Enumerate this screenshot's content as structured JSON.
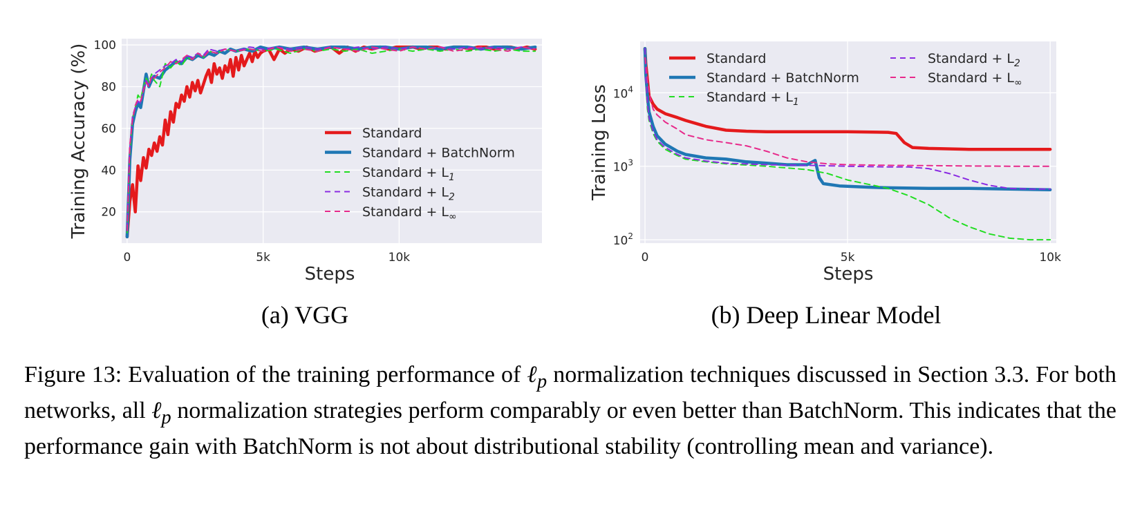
{
  "charts": [
    {
      "id": "a",
      "subcaption": "(a) VGG",
      "xlabel": "Steps",
      "ylabel": "Training Accuracy (%)",
      "xticks": [
        {
          "v": 0,
          "label": "0"
        },
        {
          "v": 5000,
          "label": "5k"
        },
        {
          "v": 10000,
          "label": "10k"
        }
      ],
      "yticks": [
        {
          "v": 20,
          "label": "20"
        },
        {
          "v": 40,
          "label": "40"
        },
        {
          "v": 60,
          "label": "60"
        },
        {
          "v": 80,
          "label": "80"
        },
        {
          "v": 100,
          "label": "100"
        }
      ]
    },
    {
      "id": "b",
      "subcaption": "(b) Deep Linear Model",
      "xlabel": "Steps",
      "ylabel": "Training Loss",
      "xticks": [
        {
          "v": 0,
          "label": "0"
        },
        {
          "v": 5000,
          "label": "5k"
        },
        {
          "v": 10000,
          "label": "10k"
        }
      ],
      "yticks": [
        {
          "v": 100,
          "base": "10",
          "exp": "2"
        },
        {
          "v": 1000,
          "base": "10",
          "exp": "3"
        },
        {
          "v": 10000,
          "base": "10",
          "exp": "4"
        }
      ]
    }
  ],
  "legend": [
    {
      "key": "std",
      "label": "Standard",
      "sub": ""
    },
    {
      "key": "bn",
      "label": "Standard + BatchNorm",
      "sub": ""
    },
    {
      "key": "l1",
      "label": "Standard + L",
      "sub": "1"
    },
    {
      "key": "l2",
      "label": "Standard + L",
      "sub": "2"
    },
    {
      "key": "linf",
      "label": "Standard + L",
      "sub": "∞"
    }
  ],
  "styles": {
    "std": {
      "color": "#e41a1c",
      "width": 4.5,
      "dash": ""
    },
    "bn": {
      "color": "#1f77b4",
      "width": 4.5,
      "dash": ""
    },
    "l1": {
      "color": "#22dd22",
      "width": 2,
      "dash": "8,6"
    },
    "l2": {
      "color": "#8a2be2",
      "width": 2,
      "dash": "8,6"
    },
    "linf": {
      "color": "#e7298a",
      "width": 2,
      "dash": "8,6"
    }
  },
  "colors": {
    "plot_bg": "#eaeaf2",
    "grid": "#ffffff"
  },
  "chart_data": [
    {
      "type": "line",
      "title": "(a) VGG",
      "xlabel": "Steps",
      "ylabel": "Training Accuracy (%)",
      "xlim": [
        0,
        15000
      ],
      "ylim": [
        5,
        103
      ],
      "yscale": "linear",
      "series": [
        {
          "key": "std",
          "name": "Standard",
          "x": [
            0,
            100,
            200,
            300,
            400,
            500,
            600,
            700,
            800,
            900,
            1000,
            1100,
            1200,
            1300,
            1400,
            1500,
            1600,
            1700,
            1800,
            1900,
            2000,
            2100,
            2200,
            2300,
            2400,
            2500,
            2600,
            2700,
            2800,
            2900,
            3000,
            3100,
            3200,
            3300,
            3400,
            3500,
            3600,
            3700,
            3800,
            3900,
            4000,
            4100,
            4200,
            4300,
            4400,
            4500,
            4600,
            4700,
            4800,
            4900,
            5000,
            5200,
            5400,
            5600,
            5800,
            6000,
            6300,
            6600,
            6900,
            7200,
            7500,
            7800,
            8100,
            8400,
            8700,
            9000,
            9300,
            9600,
            9900,
            10200,
            10500,
            10800,
            11100,
            11400,
            11700,
            12000,
            12300,
            12600,
            12900,
            13200,
            13500,
            13800,
            14100,
            14400,
            14700,
            15000
          ],
          "y": [
            8,
            25,
            33,
            20,
            42,
            35,
            46,
            41,
            50,
            47,
            53,
            49,
            56,
            52,
            64,
            57,
            68,
            63,
            72,
            70,
            76,
            73,
            80,
            75,
            82,
            78,
            83,
            77,
            81,
            85,
            88,
            82,
            91,
            86,
            89,
            84,
            90,
            87,
            93,
            85,
            94,
            88,
            95,
            90,
            93,
            96,
            92,
            97,
            94,
            96,
            97,
            98,
            93,
            98,
            96,
            98,
            97,
            99,
            97,
            98,
            99,
            96,
            99,
            97,
            99,
            98,
            99,
            98,
            99,
            99,
            99,
            98,
            99,
            99,
            98,
            99,
            99,
            98,
            99,
            99,
            98,
            99,
            99,
            98,
            99,
            98
          ]
        },
        {
          "key": "bn",
          "name": "Standard + BatchNorm",
          "x": [
            0,
            100,
            200,
            300,
            400,
            500,
            600,
            700,
            800,
            900,
            1000,
            1200,
            1400,
            1600,
            1800,
            2000,
            2200,
            2400,
            2600,
            2800,
            3000,
            3200,
            3400,
            3600,
            3800,
            4000,
            4300,
            4600,
            4900,
            5200,
            5600,
            6000,
            6500,
            7000,
            7500,
            8000,
            8500,
            9000,
            9500,
            10000,
            10500,
            11000,
            11500,
            12000,
            12500,
            13000,
            13500,
            14000,
            14500,
            15000
          ],
          "y": [
            8,
            45,
            62,
            68,
            72,
            70,
            78,
            86,
            80,
            83,
            85,
            84,
            88,
            90,
            92,
            91,
            94,
            93,
            95,
            94,
            96,
            95,
            97,
            96,
            98,
            97,
            98,
            97,
            99,
            98,
            99,
            98,
            99,
            98,
            99,
            99,
            98,
            99,
            99,
            98,
            99,
            99,
            98,
            99,
            99,
            98,
            99,
            99,
            98,
            99
          ]
        },
        {
          "key": "l1",
          "name": "Standard + L1",
          "x": [
            0,
            100,
            200,
            300,
            400,
            500,
            600,
            700,
            800,
            900,
            1000,
            1200,
            1400,
            1600,
            1800,
            2000,
            2200,
            2400,
            2600,
            2800,
            3000,
            3300,
            3600,
            4000,
            4500,
            5000,
            5500,
            6000,
            6500,
            7000,
            7500,
            8000,
            8500,
            9000,
            9500,
            10000,
            10500,
            11000,
            11500,
            12000,
            12500,
            13000,
            13500,
            14000,
            14500,
            15000
          ],
          "y": [
            10,
            48,
            65,
            70,
            76,
            74,
            80,
            84,
            82,
            86,
            83,
            80,
            91,
            89,
            92,
            90,
            94,
            93,
            96,
            94,
            97,
            96,
            98,
            97,
            98,
            97,
            98,
            96,
            98,
            97,
            98,
            97,
            98,
            96,
            97,
            98,
            97,
            98,
            97,
            98,
            97,
            98,
            97,
            98,
            97,
            97
          ]
        },
        {
          "key": "l2",
          "name": "Standard + L2",
          "x": [
            0,
            100,
            200,
            300,
            400,
            500,
            600,
            700,
            800,
            900,
            1000,
            1200,
            1400,
            1600,
            1800,
            2000,
            2200,
            2400,
            2600,
            2800,
            3000,
            3300,
            3600,
            4000,
            4500,
            5000,
            5500,
            6000,
            6500,
            7000,
            7500,
            8000,
            8500,
            9000,
            9500,
            10000,
            10500,
            11000,
            11500,
            12000,
            12500,
            13000,
            13500,
            14000,
            14500,
            15000
          ],
          "y": [
            12,
            50,
            66,
            70,
            73,
            72,
            79,
            83,
            81,
            84,
            86,
            88,
            90,
            91,
            93,
            92,
            95,
            94,
            96,
            95,
            98,
            97,
            98,
            97,
            99,
            98,
            99,
            98,
            99,
            98,
            99,
            98,
            99,
            98,
            99,
            98,
            99,
            98,
            99,
            98,
            99,
            98,
            99,
            98,
            99,
            98
          ]
        },
        {
          "key": "linf",
          "name": "Standard + L∞",
          "x": [
            0,
            100,
            200,
            300,
            400,
            500,
            600,
            700,
            800,
            900,
            1000,
            1200,
            1400,
            1600,
            1800,
            2000,
            2200,
            2400,
            2600,
            2800,
            3000,
            3300,
            3600,
            4000,
            4500,
            5000,
            5500,
            6000,
            6500,
            7000,
            7500,
            8000,
            8500,
            9000,
            9500,
            10000,
            10500,
            11000,
            11500,
            12000,
            12500,
            13000,
            13500,
            14000,
            14500,
            15000
          ],
          "y": [
            11,
            52,
            64,
            71,
            74,
            73,
            78,
            82,
            80,
            85,
            84,
            87,
            89,
            92,
            91,
            93,
            95,
            93,
            96,
            94,
            97,
            96,
            98,
            97,
            98,
            97,
            99,
            97,
            98,
            97,
            99,
            98,
            97,
            99,
            98,
            97,
            99,
            98,
            99,
            97,
            98,
            99,
            98,
            97,
            99,
            98
          ]
        }
      ]
    },
    {
      "type": "line",
      "title": "(b) Deep Linear Model",
      "xlabel": "Steps",
      "ylabel": "Training Loss",
      "xlim": [
        0,
        10000
      ],
      "ylim": [
        90,
        50000
      ],
      "yscale": "log",
      "series": [
        {
          "key": "std",
          "name": "Standard",
          "x": [
            0,
            20,
            60,
            100,
            200,
            300,
            500,
            800,
            1000,
            1500,
            2000,
            2500,
            3000,
            4000,
            5000,
            6000,
            6200,
            6400,
            6600,
            7000,
            8000,
            9000,
            10000
          ],
          "y": [
            40000,
            25000,
            15000,
            9000,
            7000,
            6000,
            5200,
            4600,
            4200,
            3500,
            3100,
            3000,
            2950,
            2950,
            2950,
            2900,
            2800,
            2100,
            1800,
            1750,
            1700,
            1700,
            1700
          ]
        },
        {
          "key": "bn",
          "name": "Standard + BatchNorm",
          "x": [
            0,
            20,
            60,
            100,
            200,
            300,
            500,
            800,
            1000,
            1500,
            2000,
            2500,
            3000,
            3500,
            4000,
            4200,
            4300,
            4400,
            4800,
            5500,
            6000,
            7000,
            8000,
            9000,
            10000
          ],
          "y": [
            40000,
            18000,
            9000,
            5500,
            3500,
            2600,
            2000,
            1600,
            1450,
            1300,
            1250,
            1150,
            1100,
            1050,
            1050,
            1200,
            700,
            580,
            540,
            520,
            510,
            500,
            500,
            490,
            480
          ]
        },
        {
          "key": "l1",
          "name": "Standard + L1",
          "x": [
            0,
            20,
            60,
            100,
            200,
            300,
            500,
            800,
            1000,
            1500,
            2000,
            3000,
            4000,
            4500,
            5000,
            6000,
            6500,
            7000,
            7500,
            8000,
            8500,
            9000,
            9500,
            10000
          ],
          "y": [
            40000,
            14000,
            6000,
            4200,
            2800,
            2200,
            1700,
            1400,
            1250,
            1150,
            1080,
            1000,
            900,
            800,
            650,
            500,
            400,
            300,
            200,
            150,
            120,
            105,
            100,
            100
          ]
        },
        {
          "key": "l2",
          "name": "Standard + L2",
          "x": [
            0,
            20,
            60,
            100,
            200,
            300,
            500,
            800,
            1000,
            1500,
            2000,
            3000,
            4000,
            5000,
            6000,
            6500,
            7000,
            7500,
            8000,
            8500,
            9000,
            9500,
            10000
          ],
          "y": [
            40000,
            15000,
            7000,
            4500,
            3000,
            2300,
            1800,
            1450,
            1300,
            1180,
            1100,
            1050,
            1030,
            1000,
            980,
            980,
            930,
            800,
            650,
            550,
            500,
            490,
            490
          ]
        },
        {
          "key": "linf",
          "name": "Standard + L∞",
          "x": [
            0,
            20,
            60,
            100,
            200,
            300,
            500,
            800,
            1000,
            1500,
            2000,
            2500,
            3000,
            3500,
            4000,
            4500,
            5000,
            6000,
            7000,
            8000,
            9000,
            10000
          ],
          "y": [
            30000,
            25000,
            15000,
            10000,
            6000,
            5000,
            4000,
            3200,
            2700,
            2300,
            2100,
            1900,
            1600,
            1300,
            1150,
            1080,
            1050,
            1030,
            1020,
            1010,
            1000,
            1000
          ]
        }
      ]
    }
  ],
  "caption": {
    "part1": "Figure 13: Evaluation of the training performance of ",
    "var": "ℓ",
    "sub": "p",
    "part2": " normalization techniques discussed in Section 3.3. For both networks, all ",
    "part3": " normalization strategies perform comparably or even better than BatchNorm. This indicates that the performance gain with BatchNorm is not about distributional stability (controlling mean and variance)."
  }
}
